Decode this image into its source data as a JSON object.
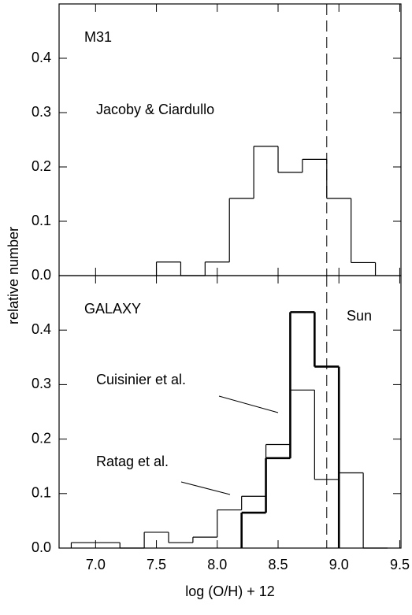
{
  "chart_data": [
    {
      "type": "histogram",
      "annotations": [
        "M31",
        "Jacoby & Ciardullo"
      ],
      "xlim": [
        6.7,
        9.51
      ],
      "ylim": [
        0,
        0.5
      ],
      "yticks": [
        {
          "value": 0,
          "label": "0.0"
        },
        0.1,
        0.2,
        0.3,
        0.4
      ],
      "vline": 8.9,
      "series": [
        {
          "color": "#000000",
          "bins": [
            7.5,
            7.7,
            7.9,
            8.1,
            8.3,
            8.5,
            8.7,
            8.9,
            9.1,
            9.3
          ],
          "values": [
            0.025,
            0,
            0.025,
            0.142,
            0.238,
            0.19,
            0.214,
            0.142,
            0.024
          ]
        }
      ]
    },
    {
      "type": "histogram",
      "annotations": [
        "GALAXY",
        "Sun"
      ],
      "x_label": "log (O/H) + 12",
      "y_label": "relative number",
      "xlim": [
        6.7,
        9.51
      ],
      "ylim": [
        0,
        0.5
      ],
      "xticks": [
        {
          "value": 7,
          "label": "7.0"
        },
        7.5,
        {
          "value": 8,
          "label": "8.0"
        },
        8.5,
        {
          "value": 9,
          "label": "9.0"
        },
        9.5
      ],
      "yticks": [
        {
          "value": 0,
          "label": "0.0"
        },
        0.1,
        0.2,
        0.3,
        0.4
      ],
      "vline": 8.9,
      "series": [
        {
          "name": "Cuisinier et al.",
          "color": "#000000",
          "bins": [
            8.2,
            8.4,
            8.6,
            8.8,
            9.0
          ],
          "values": [
            0.065,
            0.165,
            0.433,
            0.333
          ]
        },
        {
          "name": "Ratag et al.",
          "color": "#000000",
          "bins": [
            6.8,
            7.0,
            7.2,
            7.4,
            7.6,
            7.8,
            8.0,
            8.2,
            8.4,
            8.6,
            8.8,
            9.0,
            9.2,
            9.4
          ],
          "values": [
            0.01,
            0.01,
            0,
            0.029,
            0.01,
            0.02,
            0.07,
            0.095,
            0.19,
            0.29,
            0.126,
            0.138,
            0
          ]
        }
      ]
    }
  ]
}
